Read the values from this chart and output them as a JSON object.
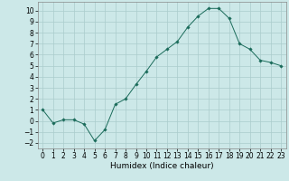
{
  "x": [
    0,
    1,
    2,
    3,
    4,
    5,
    6,
    7,
    8,
    9,
    10,
    11,
    12,
    13,
    14,
    15,
    16,
    17,
    18,
    19,
    20,
    21,
    22,
    23
  ],
  "y": [
    1.0,
    -0.2,
    0.1,
    0.1,
    -0.3,
    -1.8,
    -0.8,
    1.5,
    2.0,
    3.3,
    4.5,
    5.8,
    6.5,
    7.2,
    8.5,
    9.5,
    10.2,
    10.2,
    9.3,
    7.0,
    6.5,
    5.5,
    5.3,
    5.0
  ],
  "xlabel": "Humidex (Indice chaleur)",
  "xticks": [
    0,
    1,
    2,
    3,
    4,
    5,
    6,
    7,
    8,
    9,
    10,
    11,
    12,
    13,
    14,
    15,
    16,
    17,
    18,
    19,
    20,
    21,
    22,
    23
  ],
  "yticks": [
    -2,
    -1,
    0,
    1,
    2,
    3,
    4,
    5,
    6,
    7,
    8,
    9,
    10
  ],
  "ylim": [
    -2.5,
    10.8
  ],
  "xlim": [
    -0.5,
    23.5
  ],
  "line_color": "#1a6b5a",
  "marker": "D",
  "marker_size": 1.8,
  "bg_color": "#cce8e8",
  "grid_color": "#aacccc",
  "tick_fontsize": 5.5,
  "xlabel_fontsize": 6.5
}
